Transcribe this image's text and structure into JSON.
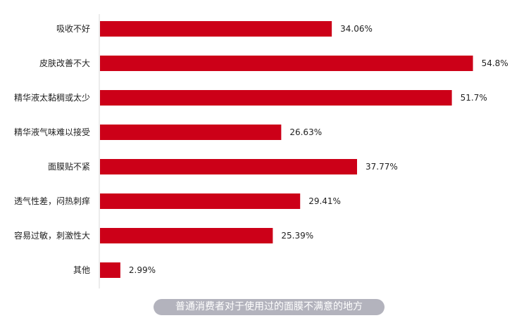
{
  "chart_data": {
    "type": "bar",
    "orientation": "horizontal",
    "categories": [
      "吸收不好",
      "皮肤改善不大",
      "精华液太黏稠或太少",
      "精华液气味难以接受",
      "面膜贴不紧",
      "透气性差，闷热刺痒",
      "容易过敏，刺激性大",
      "其他"
    ],
    "values": [
      34.06,
      54.8,
      51.7,
      26.63,
      37.77,
      29.41,
      25.39,
      2.99
    ],
    "value_labels": [
      "34.06%",
      "54.8%",
      "51.7%",
      "26.63%",
      "37.77%",
      "29.41%",
      "25.39%",
      "2.99%"
    ],
    "unit": "%",
    "xlim": [
      0,
      56.5
    ],
    "grid": false,
    "legend": "none",
    "bar_color": "#cc0018",
    "caption": "普通消费者对于使用过的面膜不满意的地方"
  }
}
